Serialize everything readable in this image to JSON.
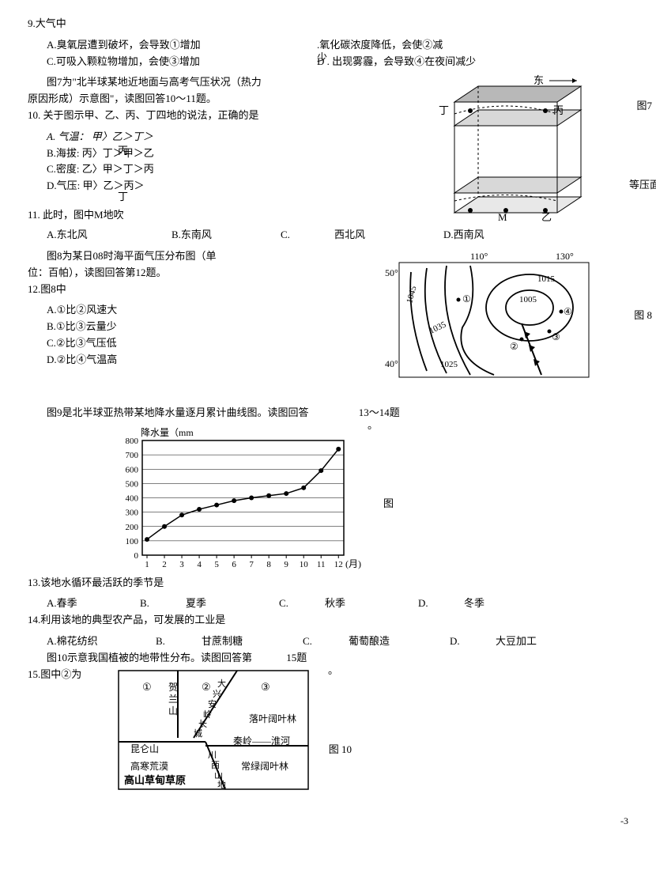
{
  "q9": {
    "stem": "9.大气中",
    "A": "A.臭氧层遭到破坏，会导致①增加",
    "B_pre": ".氧化碳浓度降低，会使②减",
    "B_suf": "少",
    "C": "C.可吸入颗粒物增加，会使③增加",
    "D": "D . 出现雾霾，会导致④在夜间减少"
  },
  "fig7_intro1": "图7为\"北半球某地近地面与高考气压状况（热力",
  "fig7_intro2": "原因形成）示意图\"，读图回答10〜11题。",
  "q10": {
    "stem": "10. 关于图示甲、乙、丙、丁四地的说法，正确的是",
    "A1": "A. 气温：  甲〉乙＞丁＞",
    "A2": "丙",
    "B": "B.海拔:   丙〉丁＞甲＞乙",
    "C": "C.密度:   乙〉甲＞丁＞丙",
    "D1": "D.气压:   甲〉乙＞丙＞",
    "D2": "丁"
  },
  "q11": {
    "stem": "11. 此时，图中M地吹",
    "A": "A.东北风",
    "B": "B.东南风",
    "C": "C.",
    "Ctxt": "西北风",
    "D": "D.西南风"
  },
  "fig7": {
    "label": "图7",
    "sub": "等压面",
    "dong": "东",
    "ding": "丁",
    "bing": "丙",
    "M": "M",
    "yi": "乙"
  },
  "fig8_intro1": "图8为某日08时海平面气压分布图（单",
  "fig8_intro2": "位：百帕），读图回答第12题。",
  "q12": {
    "stem": "12.图8中",
    "A": "A.①比②风速大",
    "B": "B.①比③云量少",
    "C": "C.②比③气压低",
    "D": "D.②比④气温高"
  },
  "fig8": {
    "label": "图 8",
    "lon110": "110°",
    "lon130": "130°",
    "lat50": "50°",
    "lat40": "40°",
    "p1045": "1045",
    "p1035": "1035",
    "p1025": "1025",
    "p1015": "1015",
    "p1005": "1005",
    "m1": "①",
    "m2": "②",
    "m3": "③",
    "m4": "④"
  },
  "fig9_intro": "图9是北半球亚热带某地降水量逐月累计曲线图。读图回答",
  "fig9_range": "13〜14题",
  "fig9": {
    "ylabel": "降水量（mm",
    "xlabel": "(月)",
    "side": "图",
    "circle": "。",
    "yticks": [
      "0",
      "100",
      "200",
      "300",
      "400",
      "500",
      "600",
      "700",
      "800"
    ],
    "xticks": [
      "1",
      "2",
      "3",
      "4",
      "5",
      "6",
      "7",
      "8",
      "9",
      "10",
      "11",
      "12"
    ],
    "values": [
      110,
      200,
      280,
      320,
      350,
      380,
      400,
      415,
      430,
      470,
      590,
      740
    ],
    "ymax": 800,
    "line_color": "#000000",
    "bg": "#ffffff"
  },
  "q13": {
    "stem": "13.该地水循环最活跃的季节是",
    "A": "A.春季",
    "B": "B.",
    "Btxt": "夏季",
    "C": "C.",
    "Ctxt": "秋季",
    "D": "D.",
    "Dtxt": "冬季"
  },
  "q14": {
    "stem": "14.利用该地的典型农产品，可发展的工业是",
    "A": "A.棉花纺织",
    "B": "B.",
    "Btxt": "甘蔗制糖",
    "C": "C.",
    "Ctxt": "葡萄酿造",
    "D": "D.",
    "Dtxt": "大豆加工"
  },
  "fig10_intro": "图10示意我国植被的地带性分布。读图回答第",
  "fig10_q": "15题",
  "q15": {
    "stem": "15.图中②为"
  },
  "fig10": {
    "label": "图 10",
    "m1": "①",
    "m2": "②",
    "m3": "③",
    "helan": "贺兰山",
    "daxing": "大兴安岭",
    "changcheng": "长城",
    "luoye": "落叶阔叶林",
    "kunlun": "昆仑山",
    "qinling": "秦岭——淮河",
    "gaohan": "高寒荒漠",
    "gaoshan": "高山草甸草原",
    "chuanxi": "川西山地",
    "changlv": "常绿阔叶林"
  },
  "page": "-3"
}
